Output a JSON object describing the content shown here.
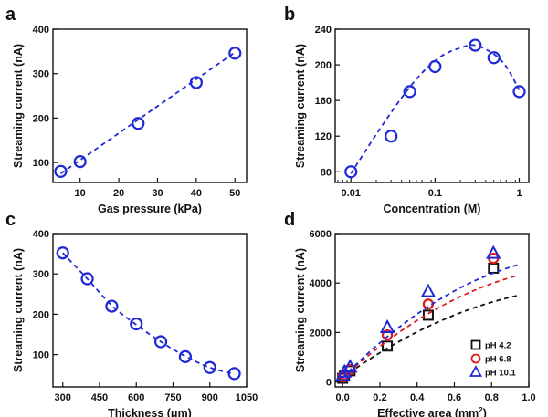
{
  "chart_data": [
    {
      "panel": "a",
      "type": "scatter",
      "xlabel": "Gas pressure (kPa)",
      "ylabel": "Streaming current (nA)",
      "xscale": "linear",
      "xlim": [
        3,
        53
      ],
      "ylim": [
        55,
        400
      ],
      "xticks": [
        10,
        20,
        30,
        40,
        50
      ],
      "xtick_labels": [
        "10",
        "20",
        "30",
        "40",
        "50"
      ],
      "yticks": [
        100,
        200,
        300,
        400
      ],
      "ytick_labels": [
        "100",
        "200",
        "300",
        "400"
      ],
      "series": [
        {
          "name": "data",
          "color": "#1f28d6",
          "marker": "circle",
          "x": [
            5,
            10,
            25,
            40,
            50
          ],
          "y": [
            80,
            102,
            188,
            280,
            346
          ],
          "fit": {
            "kind": "poly",
            "points": [
              [
                5,
                75
              ],
              [
                50,
                348
              ]
            ]
          }
        }
      ]
    },
    {
      "panel": "b",
      "type": "scatter",
      "xlabel": "Concentration (M)",
      "ylabel": "Streaming current (nA)",
      "xscale": "log",
      "xlim": [
        0.0065,
        1.3
      ],
      "ylim": [
        68,
        240
      ],
      "xticks": [
        0.01,
        0.1,
        1
      ],
      "xtick_labels": [
        "0.01",
        "0.1",
        "1"
      ],
      "yticks": [
        80,
        120,
        160,
        200,
        240
      ],
      "ytick_labels": [
        "80",
        "120",
        "160",
        "200",
        "240"
      ],
      "series": [
        {
          "name": "data",
          "color": "#1f28d6",
          "marker": "circle",
          "x": [
            0.01,
            0.03,
            0.05,
            0.1,
            0.3,
            0.5,
            1.0
          ],
          "y": [
            80,
            120,
            170,
            198,
            222,
            208,
            170
          ],
          "fit": {
            "kind": "spline",
            "points": [
              [
                0.01,
                78
              ],
              [
                0.02,
                122
              ],
              [
                0.04,
                163
              ],
              [
                0.07,
                191
              ],
              [
                0.12,
                210
              ],
              [
                0.2,
                219
              ],
              [
                0.3,
                222
              ],
              [
                0.5,
                212
              ],
              [
                0.7,
                198
              ],
              [
                1.0,
                172
              ]
            ]
          }
        }
      ]
    },
    {
      "panel": "c",
      "type": "scatter",
      "xlabel": "Thickness (μm)",
      "ylabel": "Streaming current (nA)",
      "xscale": "linear",
      "xlim": [
        260,
        1050
      ],
      "ylim": [
        20,
        400
      ],
      "xticks": [
        300,
        450,
        600,
        750,
        900,
        1050
      ],
      "xtick_labels": [
        "300",
        "450",
        "600",
        "750",
        "900",
        "1050"
      ],
      "yticks": [
        100,
        200,
        300,
        400
      ],
      "ytick_labels": [
        "100",
        "200",
        "300",
        "400"
      ],
      "series": [
        {
          "name": "data",
          "color": "#1f28d6",
          "marker": "circle",
          "x": [
            300,
            400,
            500,
            600,
            700,
            800,
            900,
            1000
          ],
          "y": [
            352,
            288,
            220,
            176,
            132,
            95,
            68,
            53
          ],
          "fit": {
            "kind": "spline",
            "points": [
              [
                300,
                352
              ],
              [
                400,
                288
              ],
              [
                500,
                222
              ],
              [
                600,
                174
              ],
              [
                700,
                132
              ],
              [
                800,
                96
              ],
              [
                900,
                68
              ],
              [
                1000,
                52
              ]
            ]
          }
        }
      ]
    },
    {
      "panel": "d",
      "type": "scatter",
      "xlabel": "Effective area (mm²)",
      "xlabel_main": "Effective area (mm",
      "xlabel_sup": "2",
      "xlabel_end": ")",
      "ylabel": "Streaming current (nA)",
      "xscale": "linear",
      "xlim": [
        -0.04,
        1.0
      ],
      "ylim": [
        -200,
        6000
      ],
      "xticks": [
        0.0,
        0.2,
        0.4,
        0.6,
        0.8,
        1.0
      ],
      "xtick_labels": [
        "0.0",
        "0.2",
        "0.4",
        "0.6",
        "0.8",
        "1.0"
      ],
      "yticks": [
        0,
        2000,
        4000,
        6000
      ],
      "ytick_labels": [
        "0",
        "2000",
        "4000",
        "6000"
      ],
      "legend_position": "bottom-right",
      "series": [
        {
          "name": "pH 4.2",
          "color": "#111111",
          "marker": "square",
          "x": [
            0.0,
            0.01,
            0.04,
            0.24,
            0.46,
            0.81
          ],
          "y": [
            150,
            250,
            450,
            1450,
            2700,
            4600
          ],
          "fit": {
            "kind": "curve",
            "a": 0.15,
            "b": 5700,
            "c": 0,
            "x0": 0.0,
            "x1": 0.94
          }
        },
        {
          "name": "pH 6.8",
          "color": "#e01a1a",
          "marker": "circle",
          "x": [
            0.0,
            0.01,
            0.04,
            0.24,
            0.46,
            0.81
          ],
          "y": [
            200,
            300,
            500,
            1900,
            3150,
            5000
          ],
          "fit": {
            "kind": "curve",
            "a": 0.2,
            "b": 7300,
            "c": 0,
            "x0": 0.0,
            "x1": 0.94
          }
        },
        {
          "name": "pH 10.1",
          "color": "#1f28d6",
          "marker": "triangle",
          "x": [
            0.0,
            0.01,
            0.04,
            0.24,
            0.46,
            0.81
          ],
          "y": [
            250,
            400,
            600,
            2200,
            3650,
            5200
          ],
          "fit": {
            "kind": "curve",
            "a": 0.25,
            "b": 8300,
            "c": 0,
            "x0": 0.0,
            "x1": 0.94
          }
        }
      ]
    }
  ]
}
